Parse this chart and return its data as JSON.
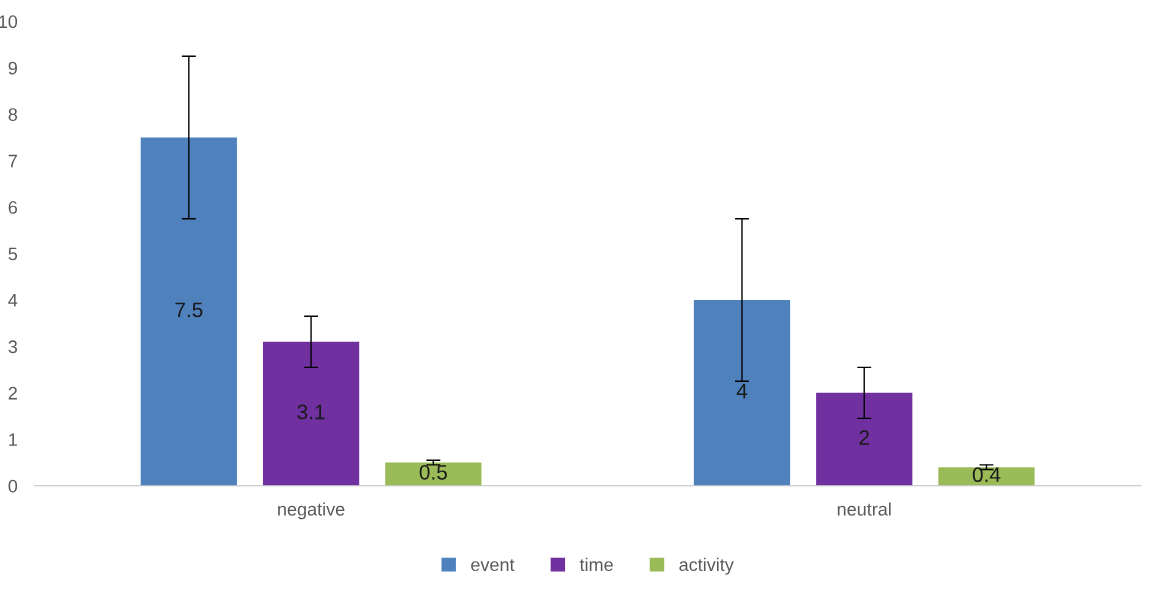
{
  "chart_data": {
    "type": "bar",
    "categories": [
      "negative",
      "neutral"
    ],
    "series": [
      {
        "name": "event",
        "color": "#4f81bd",
        "values": [
          7.5,
          4
        ],
        "errors": [
          1.75,
          1.75
        ]
      },
      {
        "name": "time",
        "color": "#7030a0",
        "values": [
          3.1,
          2
        ],
        "errors": [
          0.55,
          0.55
        ]
      },
      {
        "name": "activity",
        "color": "#9bbb59",
        "values": [
          0.5,
          0.4
        ],
        "errors": [
          0.05,
          0.05
        ]
      }
    ],
    "ylim": [
      0,
      10
    ],
    "yticks": [
      0,
      1,
      2,
      3,
      4,
      5,
      6,
      7,
      8,
      9,
      10
    ],
    "grid": false,
    "legend": "bottom",
    "data_labels": true
  }
}
